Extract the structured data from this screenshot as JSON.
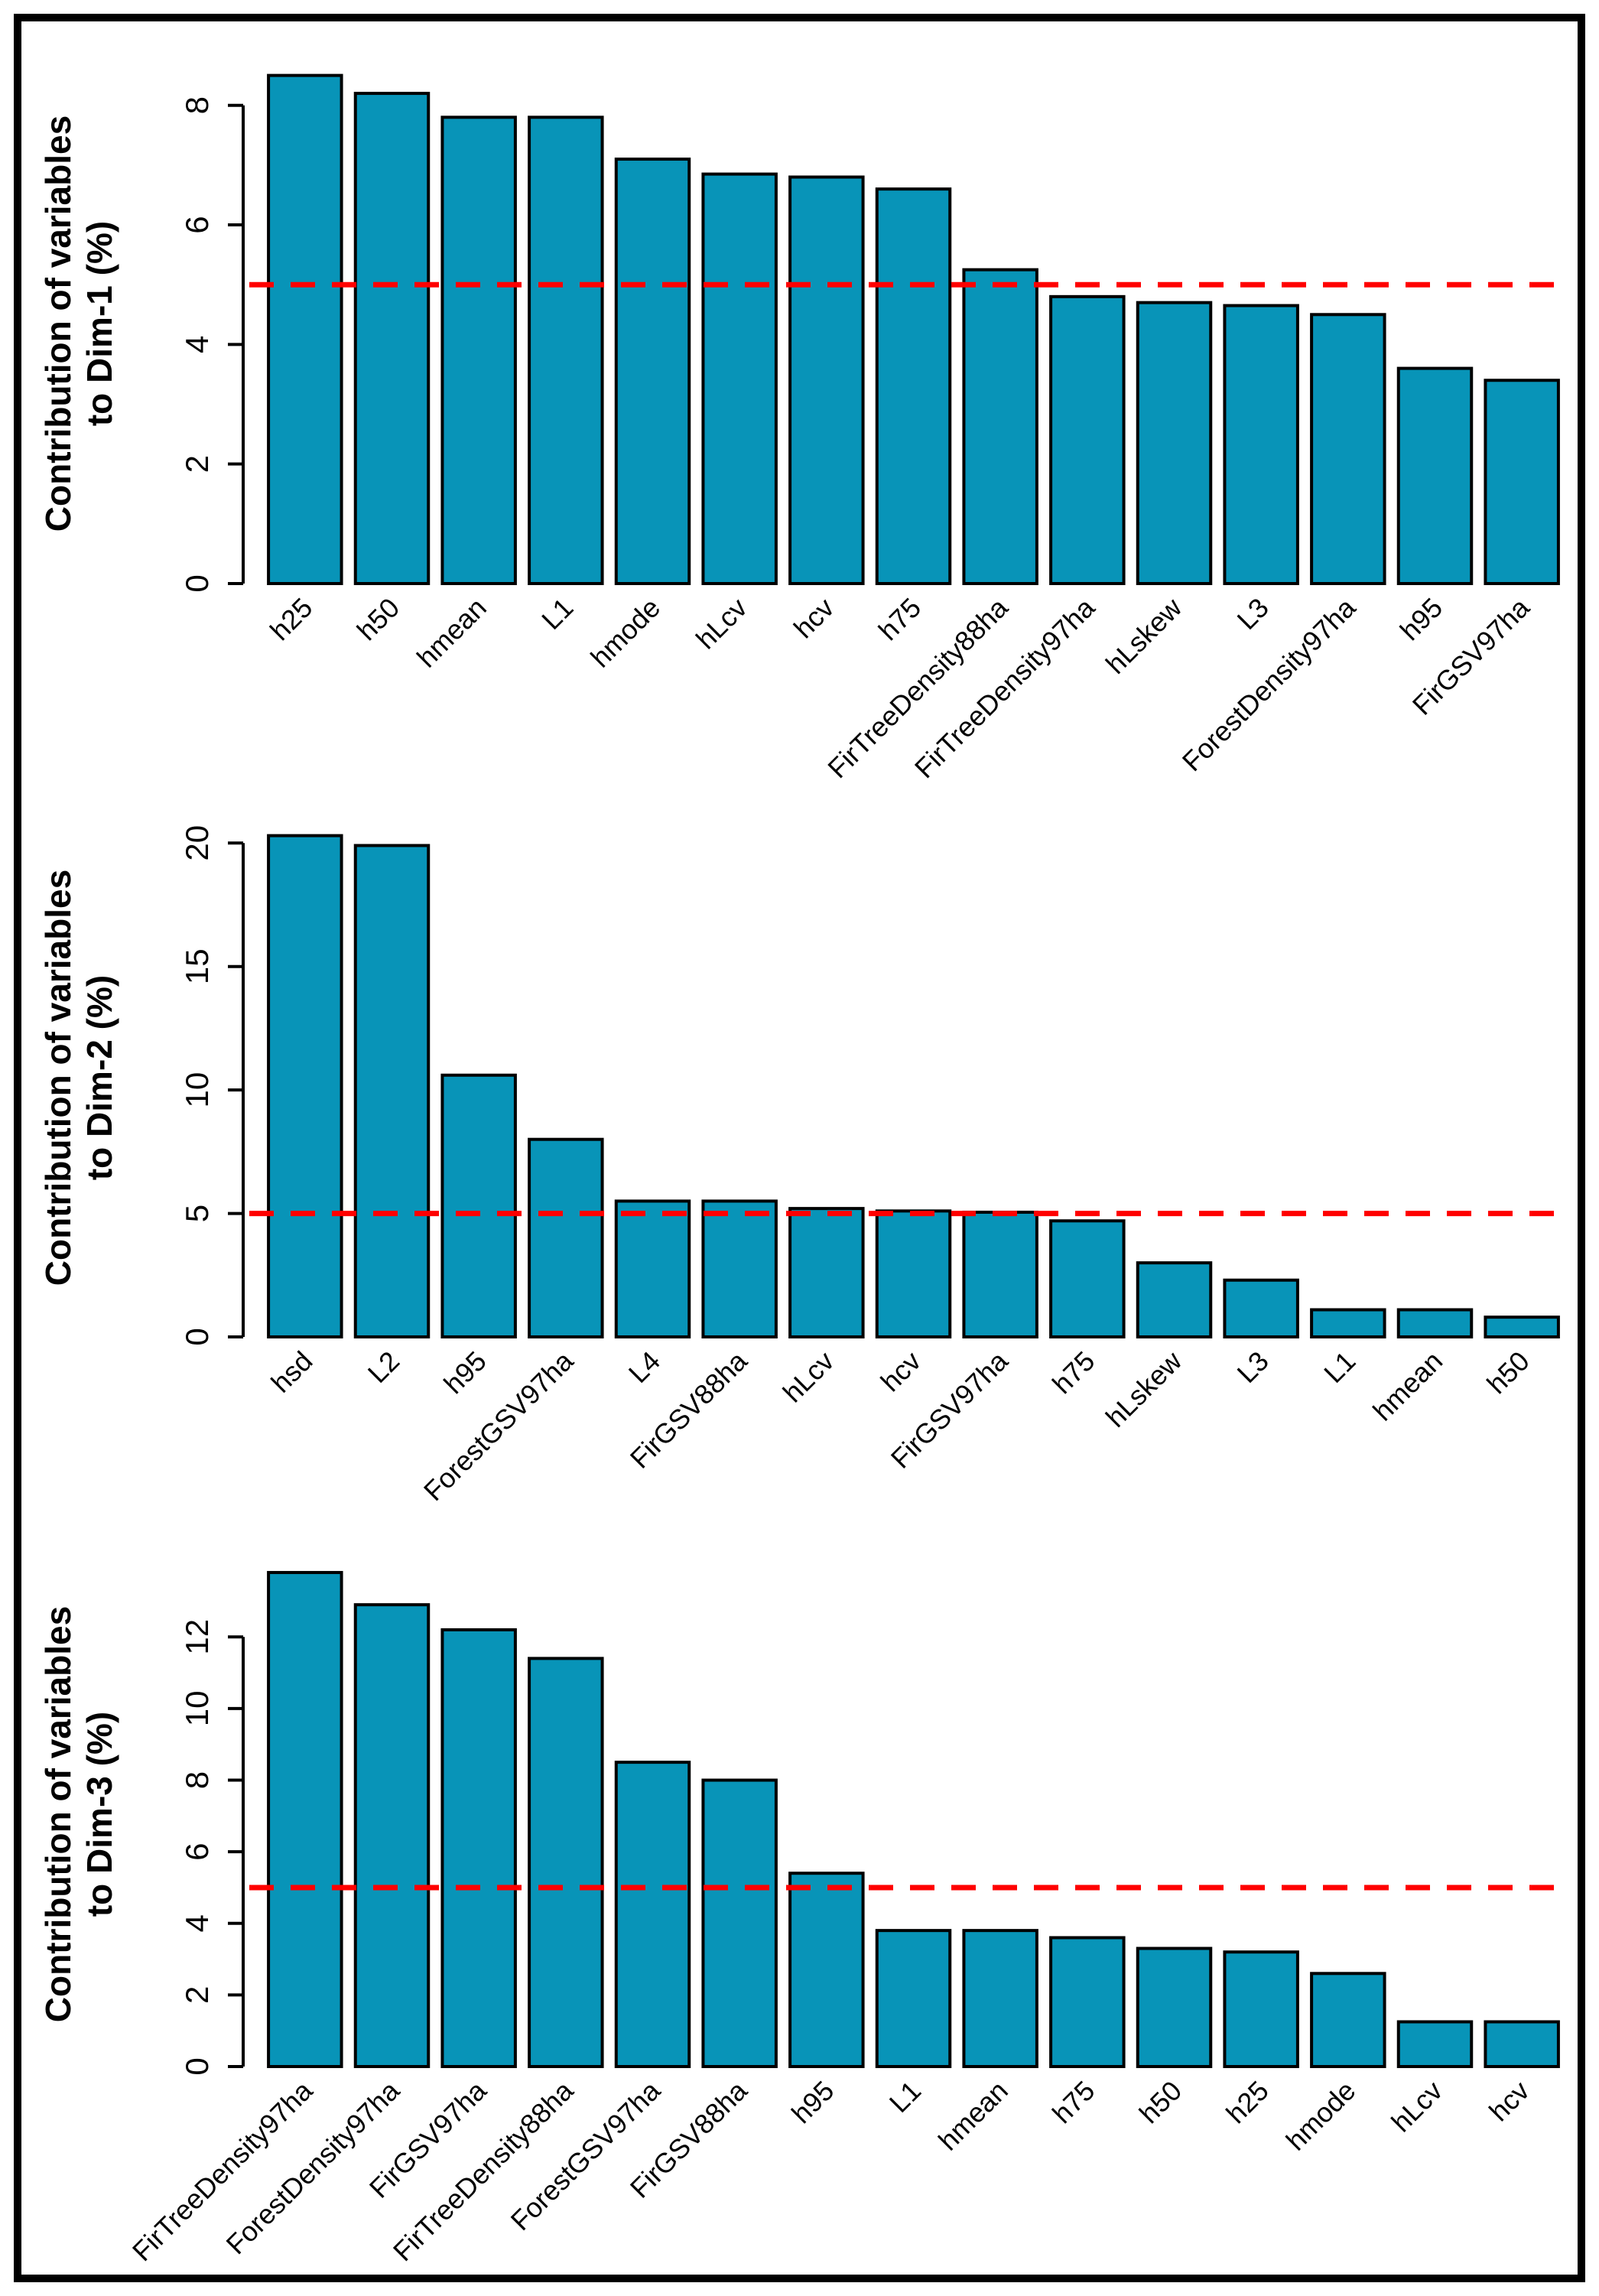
{
  "figure": {
    "background": "#FFFFFF",
    "border_color": "#000000",
    "bar_fill": "#0894B8",
    "bar_stroke": "#000000",
    "threshold_color": "#FF0000",
    "threshold_value": 5
  },
  "chart_data": [
    {
      "type": "bar",
      "panel": "Dim-1",
      "ylabel_line1": "Contribution of variables",
      "ylabel_line2": "to Dim-1 (%)",
      "xlabel": "",
      "legend": "none",
      "grid": false,
      "categories": [
        "h25",
        "h50",
        "hmean",
        "L1",
        "hmode",
        "hLcv",
        "hcv",
        "h75",
        "FirTreeDensity88ha",
        "FirTreeDensity97ha",
        "hLskew",
        "L3",
        "ForestDensity97ha",
        "h95",
        "FirGSV97ha"
      ],
      "values": [
        8.5,
        8.2,
        7.8,
        7.8,
        7.1,
        6.85,
        6.8,
        6.6,
        5.25,
        4.8,
        4.7,
        4.65,
        4.5,
        3.6,
        3.4
      ],
      "yticks": [
        0,
        2,
        4,
        6,
        8
      ],
      "ylim": [
        0,
        8.7
      ],
      "threshold": 5
    },
    {
      "type": "bar",
      "panel": "Dim-2",
      "ylabel_line1": "Contribution of variables",
      "ylabel_line2": "to Dim-2 (%)",
      "xlabel": "",
      "legend": "none",
      "grid": false,
      "categories": [
        "hsd",
        "L2",
        "h95",
        "ForestGSV97ha",
        "L4",
        "FirGSV88ha",
        "hLcv",
        "hcv",
        "FirGSV97ha",
        "h75",
        "hLskew",
        "L3",
        "L1",
        "hmean",
        "h50"
      ],
      "values": [
        20.3,
        19.9,
        10.6,
        8.0,
        5.5,
        5.5,
        5.2,
        5.1,
        5.05,
        4.7,
        3.0,
        2.3,
        1.1,
        1.1,
        0.8
      ],
      "yticks": [
        0,
        5,
        10,
        15,
        20
      ],
      "ylim": [
        0,
        21
      ],
      "threshold": 5
    },
    {
      "type": "bar",
      "panel": "Dim-3",
      "ylabel_line1": "Contribution of variables",
      "ylabel_line2": "to Dim-3 (%)",
      "xlabel": "",
      "legend": "none",
      "grid": false,
      "categories": [
        "FirTreeDensity97ha",
        "ForestDensity97ha",
        "FirGSV97ha",
        "FirTreeDensity88ha",
        "ForestGSV97ha",
        "FirGSV88ha",
        "h95",
        "L1",
        "hmean",
        "h75",
        "h50",
        "h25",
        "hmode",
        "hLcv",
        "hcv"
      ],
      "values": [
        13.8,
        12.9,
        12.2,
        11.4,
        8.5,
        8.0,
        5.4,
        3.8,
        3.8,
        3.6,
        3.3,
        3.2,
        2.6,
        1.25,
        1.25
      ],
      "yticks": [
        0,
        2,
        4,
        6,
        8,
        10,
        12
      ],
      "ylim": [
        0,
        14.1
      ],
      "threshold": 5
    }
  ]
}
